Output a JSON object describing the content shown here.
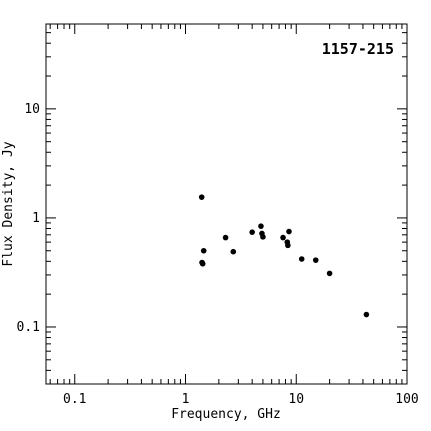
{
  "chart_data": {
    "type": "scatter",
    "title": "1157-215",
    "xlabel": "Frequency, GHz",
    "ylabel": "Flux Density, Jy",
    "xscale": "log",
    "yscale": "log",
    "xlim": [
      0.055,
      100
    ],
    "ylim": [
      0.03,
      60
    ],
    "grid": false,
    "legend": "none",
    "x_ticks": [
      {
        "value": 0.1,
        "label": "0.1"
      },
      {
        "value": 1,
        "label": "1"
      },
      {
        "value": 10,
        "label": "10"
      },
      {
        "value": 100,
        "label": "100"
      }
    ],
    "y_ticks": [
      {
        "value": 0.1,
        "label": "0.1"
      },
      {
        "value": 1,
        "label": "1"
      },
      {
        "value": 10,
        "label": "10"
      }
    ],
    "points": [
      {
        "x": 1.4,
        "y": 1.55
      },
      {
        "x": 1.41,
        "y": 0.39
      },
      {
        "x": 1.43,
        "y": 0.38
      },
      {
        "x": 1.46,
        "y": 0.5
      },
      {
        "x": 2.3,
        "y": 0.66
      },
      {
        "x": 2.7,
        "y": 0.49
      },
      {
        "x": 4.0,
        "y": 0.74
      },
      {
        "x": 4.8,
        "y": 0.84
      },
      {
        "x": 4.9,
        "y": 0.72
      },
      {
        "x": 5.0,
        "y": 0.67
      },
      {
        "x": 7.6,
        "y": 0.66
      },
      {
        "x": 8.3,
        "y": 0.6
      },
      {
        "x": 8.4,
        "y": 0.56
      },
      {
        "x": 8.6,
        "y": 0.75
      },
      {
        "x": 11.2,
        "y": 0.42
      },
      {
        "x": 15.0,
        "y": 0.41
      },
      {
        "x": 20.0,
        "y": 0.31
      },
      {
        "x": 43.0,
        "y": 0.13
      }
    ],
    "marker_color": "#000000"
  }
}
